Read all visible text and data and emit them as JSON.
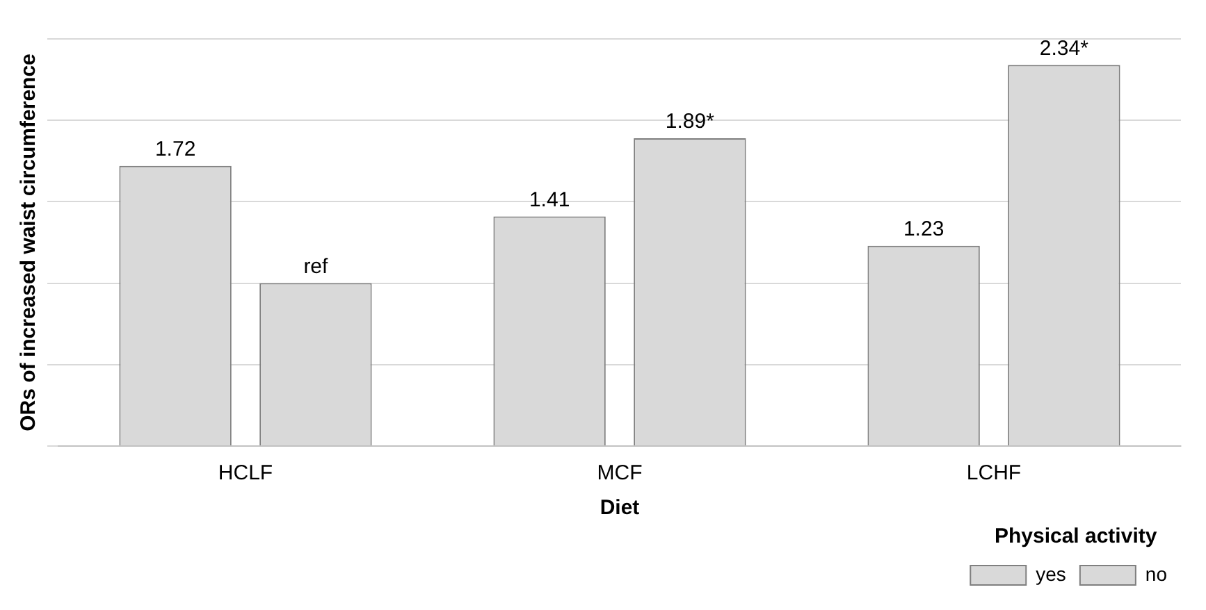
{
  "chart_data": {
    "type": "bar",
    "xlabel": "Diet",
    "ylabel": "ORs of increased waist circumference",
    "legend_title": "Physical activity",
    "categories": [
      "HCLF",
      "MCF",
      "LCHF"
    ],
    "series": [
      {
        "name": "yes",
        "color": "#d9d9d9",
        "values": [
          1.72,
          1.41,
          1.23
        ],
        "value_labels": [
          "1.72",
          "1.41",
          "1.23"
        ]
      },
      {
        "name": "no",
        "color": "#d9d9d9",
        "values": [
          1,
          1.89,
          2.34
        ],
        "value_labels": [
          "ref",
          "1.89*",
          "2.34*"
        ]
      }
    ],
    "ylim": [
      0,
      2.5
    ],
    "yticks": [
      {
        "value": 0,
        "label": null
      },
      {
        "value": 0.5,
        "label": null
      },
      {
        "value": 1,
        "label": null
      },
      {
        "value": 1.5,
        "label": null
      },
      {
        "value": 2,
        "label": null
      },
      {
        "value": 2.5,
        "label": null
      }
    ],
    "tick_labels": "x",
    "grid": "y",
    "legend": "bottom right"
  }
}
